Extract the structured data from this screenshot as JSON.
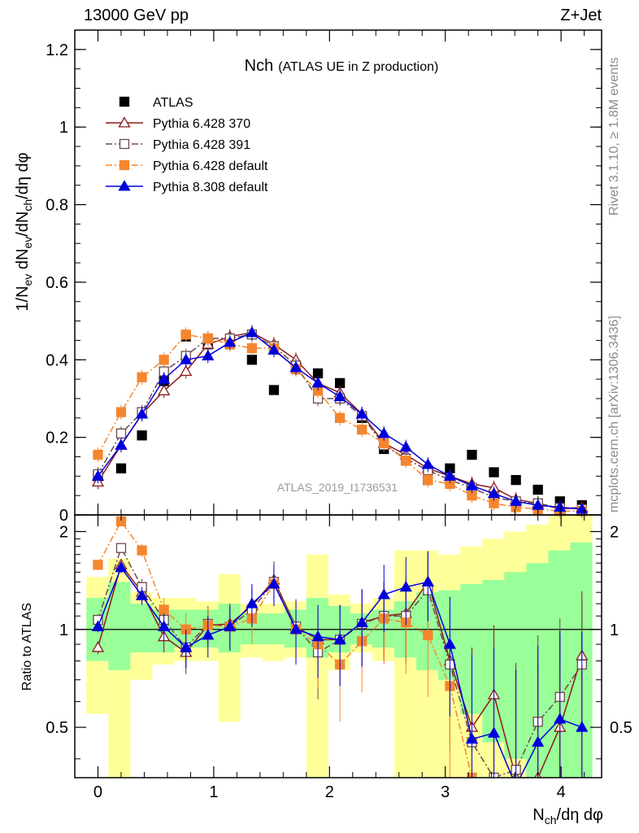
{
  "header": {
    "left": "13000 GeV pp",
    "right": "Z+Jet"
  },
  "side_labels": {
    "top": "Rivet 3.1.10, ≥ 1.8M events",
    "bottom": "mcplots.cern.ch [arXiv:1306.3436]"
  },
  "chart_data": [
    {
      "type": "scatter",
      "title_main": "Nch",
      "title_sub": "(ATLAS UE in Z production)",
      "ylabel": {
        "t1": "1/N",
        "s1": "ev",
        "t2": " dN",
        "s2": "ev",
        "t3": "/dN",
        "s3": "ch",
        "t4": "/dη dφ"
      },
      "watermark": "ATLAS_2019_I1736531",
      "xlim": [
        -0.2,
        4.35
      ],
      "ylim": [
        0,
        1.25
      ],
      "yticks": [
        "0",
        "0.2",
        "0.4",
        "0.6",
        "0.8",
        "1",
        "1.2"
      ],
      "ytick_values": [
        0,
        0.2,
        0.4,
        0.6,
        0.8,
        1.0,
        1.2
      ],
      "x": [
        0.0,
        0.2,
        0.38,
        0.57,
        0.76,
        0.95,
        1.14,
        1.33,
        1.52,
        1.71,
        1.9,
        2.09,
        2.28,
        2.47,
        2.66,
        2.85,
        3.04,
        3.23,
        3.42,
        3.61,
        3.8,
        3.99,
        4.18
      ],
      "series": [
        {
          "name": "ATLAS",
          "color": "#000000",
          "marker": "square-filled",
          "line": "none",
          "values": [
            0.1,
            0.12,
            0.205,
            0.345,
            0.46,
            0.44,
            0.44,
            0.4,
            0.322,
            0.38,
            0.365,
            0.34,
            0.25,
            0.17,
            0.14,
            0.09,
            0.12,
            0.155,
            0.11,
            0.09,
            0.065,
            0.035,
            0.025
          ]
        },
        {
          "name": "Pythia 6.428 370",
          "color": "#8b1a1a",
          "marker": "triangle-open",
          "line": "solid",
          "values": [
            0.085,
            0.18,
            0.26,
            0.32,
            0.37,
            0.44,
            0.46,
            0.47,
            0.44,
            0.4,
            0.34,
            0.315,
            0.26,
            0.185,
            0.155,
            0.12,
            0.1,
            0.08,
            0.07,
            0.04,
            0.03,
            0.015,
            0.02
          ]
        },
        {
          "name": "Pythia 6.428 391",
          "color": "#6b4a4a",
          "marker": "square-open",
          "line": "dashdot",
          "values": [
            0.105,
            0.21,
            0.265,
            0.37,
            0.41,
            0.455,
            0.455,
            0.465,
            0.435,
            0.385,
            0.3,
            0.3,
            0.255,
            0.18,
            0.145,
            0.115,
            0.09,
            0.07,
            0.045,
            0.035,
            0.03,
            0.018,
            0.015
          ]
        },
        {
          "name": "Pythia 6.428 default",
          "color": "#f5862e",
          "marker": "square-filled",
          "line": "dashdot",
          "values": [
            0.155,
            0.265,
            0.355,
            0.4,
            0.465,
            0.455,
            0.44,
            0.43,
            0.43,
            0.375,
            0.32,
            0.25,
            0.22,
            0.185,
            0.14,
            0.09,
            0.08,
            0.05,
            0.03,
            0.02,
            0.015,
            0.01,
            0.01
          ]
        },
        {
          "name": "Pythia 8.308 default",
          "color": "#0000dd",
          "marker": "triangle-filled",
          "line": "solid",
          "values": [
            0.1,
            0.18,
            0.26,
            0.35,
            0.4,
            0.41,
            0.445,
            0.47,
            0.425,
            0.38,
            0.34,
            0.305,
            0.26,
            0.21,
            0.175,
            0.13,
            0.1,
            0.075,
            0.055,
            0.035,
            0.025,
            0.02,
            0.015
          ]
        }
      ]
    },
    {
      "type": "scatter",
      "ylabel": "Ratio to ATLAS",
      "xlabel": {
        "t1": "N",
        "s1": "ch",
        "t2": "/dη dφ"
      },
      "xlim": [
        -0.2,
        4.35
      ],
      "ylim": [
        0.35,
        2.25
      ],
      "xticks": [
        "0",
        "1",
        "2",
        "3",
        "4"
      ],
      "xtick_values": [
        0,
        1,
        2,
        3,
        4
      ],
      "yticks": [
        "0.5",
        "1",
        "2"
      ],
      "ytick_values": [
        0.5,
        1,
        2
      ],
      "bands": {
        "edges": [
          -0.1,
          0.09,
          0.28,
          0.47,
          0.66,
          0.85,
          1.04,
          1.23,
          1.42,
          1.61,
          1.8,
          1.99,
          2.18,
          2.37,
          2.56,
          2.75,
          2.94,
          3.13,
          3.32,
          3.51,
          3.7,
          3.89,
          4.08,
          4.27
        ],
        "yellow_lo": [
          0.55,
          0.3,
          0.7,
          0.78,
          0.8,
          0.8,
          0.52,
          0.82,
          0.8,
          0.82,
          0.3,
          0.75,
          0.85,
          0.8,
          0.3,
          0.3,
          0.3,
          0.3,
          0.3,
          0.3,
          0.3,
          0.3,
          0.3
        ],
        "yellow_hi": [
          1.45,
          1.65,
          1.3,
          1.25,
          1.25,
          1.22,
          1.48,
          1.2,
          1.2,
          1.22,
          1.7,
          1.28,
          1.2,
          1.25,
          1.75,
          1.75,
          1.7,
          1.8,
          1.9,
          2.0,
          2.1,
          2.3,
          2.35
        ],
        "green_lo": [
          0.8,
          0.75,
          0.85,
          0.85,
          0.88,
          0.88,
          0.85,
          0.9,
          0.9,
          0.88,
          0.82,
          0.85,
          0.9,
          0.88,
          0.82,
          0.75,
          0.7,
          0.55,
          0.45,
          0.4,
          0.35,
          0.3,
          0.3
        ],
        "green_hi": [
          1.25,
          1.4,
          1.2,
          1.15,
          1.15,
          1.15,
          1.2,
          1.12,
          1.12,
          1.15,
          1.25,
          1.18,
          1.12,
          1.15,
          1.22,
          1.3,
          1.32,
          1.38,
          1.42,
          1.5,
          1.6,
          1.75,
          1.85
        ]
      },
      "series": [
        {
          "name": "Pythia 6.428 370",
          "color": "#8b1a1a",
          "marker": "triangle-open",
          "line": "solid",
          "values": [
            0.88,
            1.58,
            1.3,
            0.95,
            0.85,
            1.03,
            1.04,
            1.18,
            1.42,
            1.02,
            0.93,
            0.93,
            1.05,
            1.1,
            1.12,
            1.4,
            0.8,
            0.5,
            0.63,
            0.35,
            0.35,
            0.5,
            0.83
          ]
        },
        {
          "name": "Pythia 6.428 391",
          "color": "#6b4a4a",
          "marker": "square-open",
          "line": "dashdot",
          "values": [
            1.07,
            1.78,
            1.35,
            1.07,
            0.88,
            1.04,
            1.02,
            1.15,
            1.4,
            1.02,
            0.85,
            0.93,
            1.04,
            1.1,
            1.1,
            1.32,
            0.78,
            0.45,
            0.35,
            0.37,
            0.52,
            0.62,
            0.78
          ]
        },
        {
          "name": "Pythia 6.428 default",
          "color": "#f5862e",
          "marker": "square-filled",
          "line": "dashdot",
          "values": [
            1.58,
            2.15,
            1.75,
            1.15,
            1.0,
            1.03,
            1.02,
            1.08,
            1.38,
            1.0,
            0.9,
            0.78,
            0.92,
            1.08,
            1.05,
            0.96,
            0.67,
            0.35,
            0.3,
            0.3,
            0.3,
            0.3,
            0.3
          ]
        },
        {
          "name": "Pythia 8.308 default",
          "color": "#0000dd",
          "marker": "triangle-filled",
          "line": "solid",
          "values": [
            1.02,
            1.55,
            1.27,
            1.02,
            0.88,
            0.96,
            1.02,
            1.2,
            1.38,
            1.0,
            0.95,
            0.93,
            1.05,
            1.28,
            1.35,
            1.4,
            0.9,
            0.46,
            0.48,
            0.33,
            0.45,
            0.53,
            0.5
          ]
        }
      ]
    }
  ]
}
